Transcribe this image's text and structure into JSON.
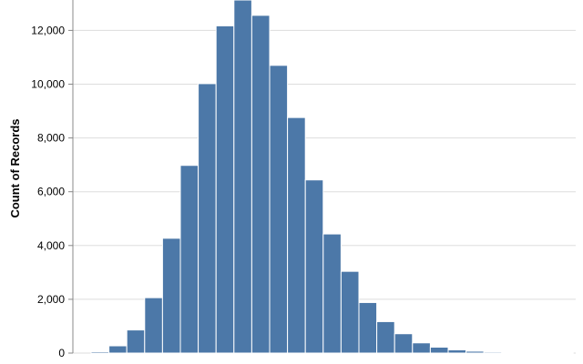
{
  "chart_data": {
    "type": "bar",
    "ylabel": "Count of Records",
    "xlabel": "",
    "ylim": [
      0,
      13200
    ],
    "yticks": [
      0,
      2000,
      4000,
      6000,
      8000,
      10000,
      12000
    ],
    "ytick_labels": [
      "0",
      "2,000",
      "4,000",
      "6,000",
      "8,000",
      "10,000",
      "12,000"
    ],
    "grid": true,
    "color": "#4c78a8",
    "values": [
      50,
      270,
      860,
      2060,
      4270,
      6980,
      10020,
      12170,
      13130,
      12560,
      10700,
      8760,
      6440,
      4430,
      3040,
      1880,
      1170,
      720,
      380,
      220,
      120,
      70,
      40,
      20,
      10,
      5,
      2
    ]
  }
}
